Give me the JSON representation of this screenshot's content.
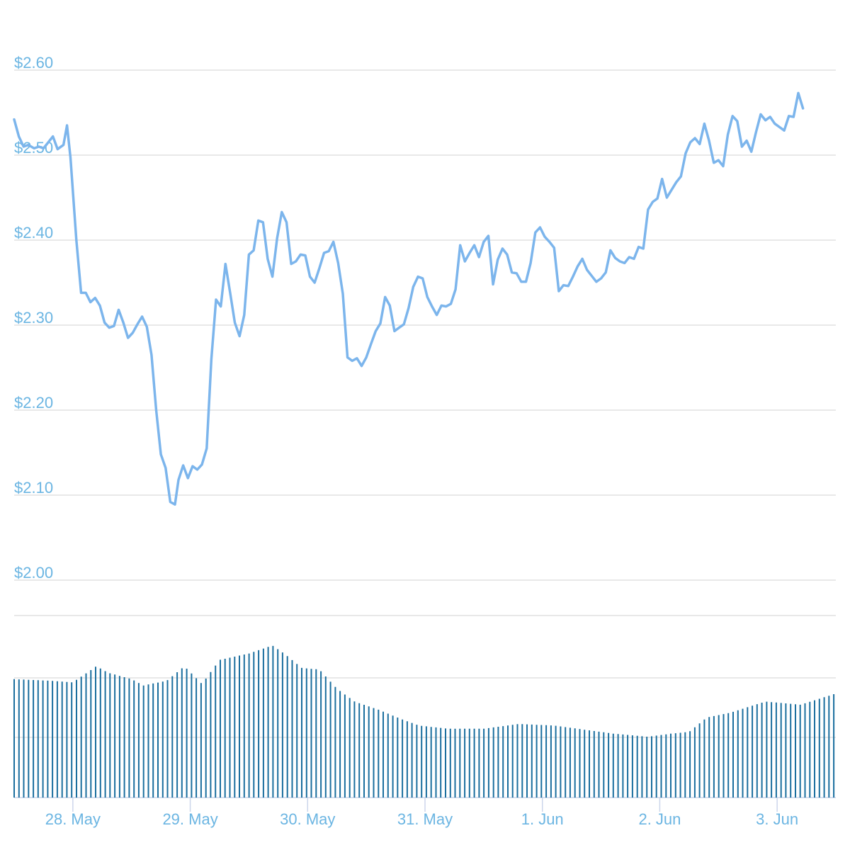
{
  "colors": {
    "line": "#7cb5ec",
    "volume": "#1a6e9e",
    "axis_label": "#6bb5e2",
    "grid": "#e0e0e0"
  },
  "chart_data": {
    "type": "line",
    "title": "",
    "xlabel": "",
    "ylabel": "",
    "ylim": [
      2.0,
      2.6
    ],
    "y_ticks": [
      "$2.60",
      "$2.50",
      "$2.40",
      "$2.30",
      "$2.20",
      "$2.10",
      "$2.00"
    ],
    "y_tick_values": [
      2.6,
      2.5,
      2.4,
      2.3,
      2.2,
      2.1,
      2.0
    ],
    "x_ticks": [
      "28. May",
      "29. May",
      "30. May",
      "31. May",
      "1. Jun",
      "2. Jun",
      "3. Jun"
    ],
    "x_tick_days": [
      0.5,
      1.5,
      2.5,
      3.5,
      4.5,
      5.5,
      6.5
    ],
    "x_range_days": [
      0,
      7.0
    ],
    "grid": true,
    "legend": "none",
    "series": [
      {
        "name": "",
        "points": [
          [
            0.0,
            2.542
          ],
          [
            0.04,
            2.522
          ],
          [
            0.08,
            2.51
          ],
          [
            0.12,
            2.512
          ],
          [
            0.17,
            2.508
          ],
          [
            0.21,
            2.51
          ],
          [
            0.25,
            2.508
          ],
          [
            0.29,
            2.515
          ],
          [
            0.33,
            2.522
          ],
          [
            0.37,
            2.507
          ],
          [
            0.42,
            2.512
          ],
          [
            0.45,
            2.535
          ],
          [
            0.48,
            2.497
          ],
          [
            0.53,
            2.4
          ],
          [
            0.57,
            2.338
          ],
          [
            0.61,
            2.338
          ],
          [
            0.65,
            2.327
          ],
          [
            0.69,
            2.332
          ],
          [
            0.73,
            2.323
          ],
          [
            0.77,
            2.303
          ],
          [
            0.81,
            2.297
          ],
          [
            0.85,
            2.299
          ],
          [
            0.89,
            2.318
          ],
          [
            0.93,
            2.303
          ],
          [
            0.97,
            2.285
          ],
          [
            1.01,
            2.291
          ],
          [
            1.05,
            2.301
          ],
          [
            1.09,
            2.31
          ],
          [
            1.13,
            2.298
          ],
          [
            1.17,
            2.265
          ],
          [
            1.21,
            2.2
          ],
          [
            1.25,
            2.148
          ],
          [
            1.29,
            2.132
          ],
          [
            1.33,
            2.092
          ],
          [
            1.37,
            2.089
          ],
          [
            1.4,
            2.118
          ],
          [
            1.44,
            2.135
          ],
          [
            1.48,
            2.12
          ],
          [
            1.52,
            2.134
          ],
          [
            1.56,
            2.13
          ],
          [
            1.6,
            2.136
          ],
          [
            1.64,
            2.155
          ],
          [
            1.68,
            2.26
          ],
          [
            1.72,
            2.33
          ],
          [
            1.76,
            2.322
          ],
          [
            1.8,
            2.372
          ],
          [
            1.84,
            2.338
          ],
          [
            1.88,
            2.303
          ],
          [
            1.92,
            2.287
          ],
          [
            1.96,
            2.312
          ],
          [
            2.0,
            2.383
          ],
          [
            2.04,
            2.388
          ],
          [
            2.08,
            2.423
          ],
          [
            2.12,
            2.421
          ],
          [
            2.16,
            2.378
          ],
          [
            2.2,
            2.357
          ],
          [
            2.24,
            2.402
          ],
          [
            2.28,
            2.433
          ],
          [
            2.32,
            2.421
          ],
          [
            2.36,
            2.372
          ],
          [
            2.4,
            2.375
          ],
          [
            2.44,
            2.383
          ],
          [
            2.48,
            2.382
          ],
          [
            2.52,
            2.357
          ],
          [
            2.56,
            2.35
          ],
          [
            2.6,
            2.367
          ],
          [
            2.64,
            2.385
          ],
          [
            2.68,
            2.387
          ],
          [
            2.72,
            2.398
          ],
          [
            2.76,
            2.373
          ],
          [
            2.8,
            2.337
          ],
          [
            2.84,
            2.262
          ],
          [
            2.88,
            2.258
          ],
          [
            2.92,
            2.261
          ],
          [
            2.96,
            2.252
          ],
          [
            3.0,
            2.262
          ],
          [
            3.04,
            2.278
          ],
          [
            3.08,
            2.293
          ],
          [
            3.12,
            2.302
          ],
          [
            3.16,
            2.333
          ],
          [
            3.2,
            2.323
          ],
          [
            3.24,
            2.293
          ],
          [
            3.28,
            2.297
          ],
          [
            3.32,
            2.301
          ],
          [
            3.36,
            2.32
          ],
          [
            3.4,
            2.345
          ],
          [
            3.44,
            2.357
          ],
          [
            3.48,
            2.355
          ],
          [
            3.52,
            2.333
          ],
          [
            3.56,
            2.322
          ],
          [
            3.6,
            2.312
          ],
          [
            3.64,
            2.323
          ],
          [
            3.68,
            2.322
          ],
          [
            3.72,
            2.325
          ],
          [
            3.76,
            2.342
          ],
          [
            3.8,
            2.394
          ],
          [
            3.84,
            2.375
          ],
          [
            3.88,
            2.385
          ],
          [
            3.92,
            2.394
          ],
          [
            3.96,
            2.38
          ],
          [
            4.0,
            2.398
          ],
          [
            4.04,
            2.405
          ],
          [
            4.08,
            2.348
          ],
          [
            4.12,
            2.377
          ],
          [
            4.16,
            2.39
          ],
          [
            4.2,
            2.383
          ],
          [
            4.24,
            2.362
          ],
          [
            4.28,
            2.361
          ],
          [
            4.32,
            2.351
          ],
          [
            4.36,
            2.351
          ],
          [
            4.4,
            2.373
          ],
          [
            4.44,
            2.409
          ],
          [
            4.48,
            2.415
          ],
          [
            4.52,
            2.404
          ],
          [
            4.56,
            2.398
          ],
          [
            4.6,
            2.391
          ],
          [
            4.64,
            2.34
          ],
          [
            4.68,
            2.347
          ],
          [
            4.72,
            2.346
          ],
          [
            4.76,
            2.357
          ],
          [
            4.8,
            2.369
          ],
          [
            4.84,
            2.378
          ],
          [
            4.88,
            2.365
          ],
          [
            4.92,
            2.358
          ],
          [
            4.96,
            2.351
          ],
          [
            5.0,
            2.355
          ],
          [
            5.04,
            2.362
          ],
          [
            5.08,
            2.388
          ],
          [
            5.12,
            2.379
          ],
          [
            5.16,
            2.375
          ],
          [
            5.2,
            2.373
          ],
          [
            5.24,
            2.38
          ],
          [
            5.28,
            2.378
          ],
          [
            5.32,
            2.392
          ],
          [
            5.36,
            2.39
          ],
          [
            5.4,
            2.436
          ],
          [
            5.44,
            2.445
          ],
          [
            5.48,
            2.449
          ],
          [
            5.52,
            2.472
          ],
          [
            5.56,
            2.45
          ],
          [
            5.6,
            2.459
          ],
          [
            5.64,
            2.468
          ],
          [
            5.68,
            2.475
          ],
          [
            5.72,
            2.502
          ],
          [
            5.76,
            2.515
          ],
          [
            5.8,
            2.52
          ],
          [
            5.84,
            2.513
          ],
          [
            5.88,
            2.537
          ],
          [
            5.92,
            2.517
          ],
          [
            5.96,
            2.491
          ],
          [
            6.0,
            2.494
          ],
          [
            6.04,
            2.487
          ],
          [
            6.08,
            2.524
          ],
          [
            6.12,
            2.546
          ],
          [
            6.16,
            2.54
          ],
          [
            6.2,
            2.51
          ],
          [
            6.24,
            2.517
          ],
          [
            6.28,
            2.504
          ],
          [
            6.32,
            2.527
          ],
          [
            6.36,
            2.548
          ],
          [
            6.4,
            2.541
          ],
          [
            6.44,
            2.545
          ],
          [
            6.48,
            2.537
          ],
          [
            6.52,
            2.533
          ],
          [
            6.56,
            2.529
          ],
          [
            6.6,
            2.546
          ],
          [
            6.64,
            2.545
          ],
          [
            6.68,
            2.573
          ],
          [
            6.72,
            2.555
          ]
        ]
      }
    ],
    "volume": {
      "units": "relative",
      "min": 0,
      "max": 1.0,
      "samples": [
        [
          0.0,
          0.74
        ],
        [
          0.3,
          0.73
        ],
        [
          0.5,
          0.72
        ],
        [
          0.7,
          0.82
        ],
        [
          0.8,
          0.78
        ],
        [
          1.0,
          0.74
        ],
        [
          1.1,
          0.7
        ],
        [
          1.3,
          0.73
        ],
        [
          1.45,
          0.82
        ],
        [
          1.6,
          0.71
        ],
        [
          1.75,
          0.86
        ],
        [
          2.0,
          0.9
        ],
        [
          2.2,
          0.95
        ],
        [
          2.3,
          0.9
        ],
        [
          2.45,
          0.81
        ],
        [
          2.6,
          0.8
        ],
        [
          2.75,
          0.68
        ],
        [
          2.9,
          0.6
        ],
        [
          3.1,
          0.55
        ],
        [
          3.3,
          0.49
        ],
        [
          3.45,
          0.45
        ],
        [
          3.7,
          0.43
        ],
        [
          4.0,
          0.43
        ],
        [
          4.3,
          0.46
        ],
        [
          4.6,
          0.45
        ],
        [
          4.9,
          0.42
        ],
        [
          5.1,
          0.4
        ],
        [
          5.4,
          0.38
        ],
        [
          5.6,
          0.4
        ],
        [
          5.75,
          0.41
        ],
        [
          5.9,
          0.5
        ],
        [
          6.1,
          0.53
        ],
        [
          6.4,
          0.6
        ],
        [
          6.7,
          0.58
        ],
        [
          7.0,
          0.65
        ]
      ]
    }
  }
}
